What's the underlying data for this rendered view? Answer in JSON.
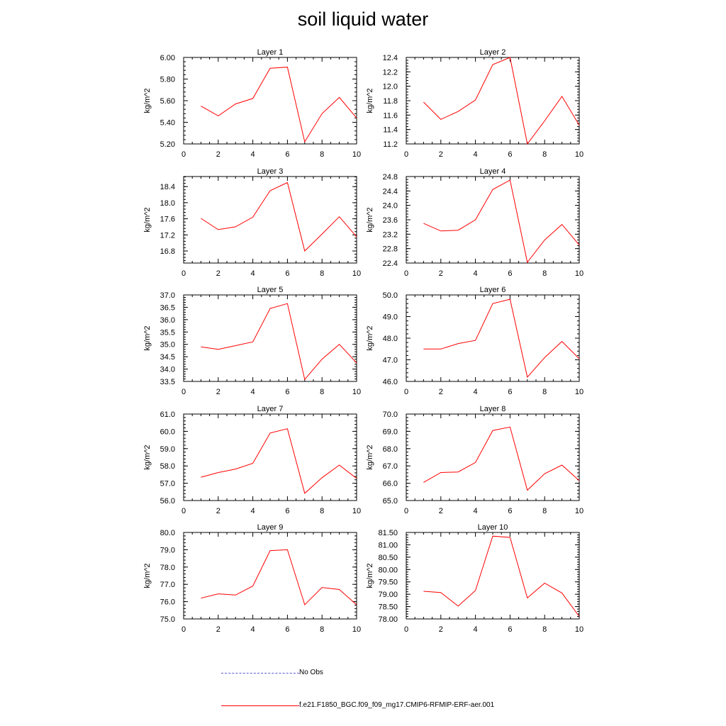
{
  "title": "soil liquid water",
  "legend": [
    {
      "label": "No Obs",
      "color": "#5a5ad2",
      "style": "dashed"
    },
    {
      "label": "f.e21.F1850_BGC.f09_f09_mg17.CMIP6-RFMIP-ERF-aer.001",
      "color": "#ff0000",
      "style": "solid"
    }
  ],
  "chart_data": [
    {
      "type": "line",
      "title": "Layer 1",
      "xlabel": "",
      "ylabel": "kg/m^2",
      "xlim": [
        0,
        10
      ],
      "xticks": [
        "0",
        "2",
        "4",
        "6",
        "8",
        "10"
      ],
      "ylim": [
        5.2,
        6.0
      ],
      "yticks": [
        "5.20",
        "5.40",
        "5.60",
        "5.80",
        "6.00"
      ],
      "series": [
        {
          "color": "#ff0000",
          "x": [
            1,
            2,
            3,
            4,
            5,
            6,
            7,
            8,
            9,
            10
          ],
          "values": [
            5.55,
            5.46,
            5.57,
            5.62,
            5.9,
            5.91,
            5.22,
            5.48,
            5.63,
            5.44
          ]
        }
      ]
    },
    {
      "type": "line",
      "title": "Layer 2",
      "xlabel": "",
      "ylabel": "kg/m^2",
      "xlim": [
        0,
        10
      ],
      "xticks": [
        "0",
        "2",
        "4",
        "6",
        "8",
        "10"
      ],
      "ylim": [
        11.2,
        12.4
      ],
      "yticks": [
        "11.2",
        "11.4",
        "11.6",
        "11.8",
        "12.0",
        "12.2",
        "12.4"
      ],
      "series": [
        {
          "color": "#ff0000",
          "x": [
            1,
            2,
            3,
            4,
            5,
            6,
            7,
            8,
            9,
            10
          ],
          "values": [
            11.78,
            11.54,
            11.65,
            11.81,
            12.3,
            12.4,
            11.2,
            11.52,
            11.86,
            11.46
          ]
        }
      ]
    },
    {
      "type": "line",
      "title": "Layer 3",
      "xlabel": "",
      "ylabel": "kg/m^2",
      "xlim": [
        0,
        10
      ],
      "xticks": [
        "0",
        "2",
        "4",
        "6",
        "8",
        "10"
      ],
      "ylim": [
        16.5,
        18.65
      ],
      "yticks": [
        "16.8",
        "17.2",
        "17.6",
        "18.0",
        "18.4"
      ],
      "series": [
        {
          "color": "#ff0000",
          "x": [
            1,
            2,
            3,
            4,
            5,
            6,
            7,
            8,
            9,
            10
          ],
          "values": [
            17.61,
            17.33,
            17.4,
            17.64,
            18.3,
            18.5,
            16.8,
            17.22,
            17.65,
            17.15
          ]
        }
      ]
    },
    {
      "type": "line",
      "title": "Layer 4",
      "xlabel": "",
      "ylabel": "kg/m^2",
      "xlim": [
        0,
        10
      ],
      "xticks": [
        "0",
        "2",
        "4",
        "6",
        "8",
        "10"
      ],
      "ylim": [
        22.4,
        24.8
      ],
      "yticks": [
        "22.4",
        "22.8",
        "23.2",
        "23.6",
        "24.0",
        "24.4",
        "24.8"
      ],
      "series": [
        {
          "color": "#ff0000",
          "x": [
            1,
            2,
            3,
            4,
            5,
            6,
            7,
            8,
            9,
            10
          ],
          "values": [
            23.5,
            23.29,
            23.31,
            23.6,
            24.44,
            24.7,
            22.42,
            23.04,
            23.47,
            22.9
          ]
        }
      ]
    },
    {
      "type": "line",
      "title": "Layer 5",
      "xlabel": "",
      "ylabel": "kg/m^2",
      "xlim": [
        0,
        10
      ],
      "xticks": [
        "0",
        "2",
        "4",
        "6",
        "8",
        "10"
      ],
      "ylim": [
        33.5,
        37.0
      ],
      "yticks": [
        "33.5",
        "34.0",
        "34.5",
        "35.0",
        "35.5",
        "36.0",
        "36.5",
        "37.0"
      ],
      "series": [
        {
          "color": "#ff0000",
          "x": [
            1,
            2,
            3,
            4,
            5,
            6,
            7,
            8,
            9,
            10
          ],
          "values": [
            34.9,
            34.8,
            34.95,
            35.1,
            36.45,
            36.65,
            33.58,
            34.4,
            35.0,
            34.25
          ]
        }
      ]
    },
    {
      "type": "line",
      "title": "Layer 6",
      "xlabel": "",
      "ylabel": "kg/m^2",
      "xlim": [
        0,
        10
      ],
      "xticks": [
        "0",
        "2",
        "4",
        "6",
        "8",
        "10"
      ],
      "ylim": [
        46.0,
        50.0
      ],
      "yticks": [
        "46.0",
        "47.0",
        "48.0",
        "49.0",
        "50.0"
      ],
      "series": [
        {
          "color": "#ff0000",
          "x": [
            1,
            2,
            3,
            4,
            5,
            6,
            7,
            8,
            9,
            10
          ],
          "values": [
            47.5,
            47.5,
            47.75,
            47.9,
            49.6,
            49.8,
            46.2,
            47.1,
            47.85,
            47.05
          ]
        }
      ]
    },
    {
      "type": "line",
      "title": "Layer 7",
      "xlabel": "",
      "ylabel": "kg/m^2",
      "xlim": [
        0,
        10
      ],
      "xticks": [
        "0",
        "2",
        "4",
        "6",
        "8",
        "10"
      ],
      "ylim": [
        56.0,
        61.0
      ],
      "yticks": [
        "56.0",
        "57.0",
        "58.0",
        "59.0",
        "60.0",
        "61.0"
      ],
      "series": [
        {
          "color": "#ff0000",
          "x": [
            1,
            2,
            3,
            4,
            5,
            6,
            7,
            8,
            9,
            10
          ],
          "values": [
            57.35,
            57.62,
            57.82,
            58.15,
            59.9,
            60.15,
            56.42,
            57.32,
            58.05,
            57.28
          ]
        }
      ]
    },
    {
      "type": "line",
      "title": "Layer 8",
      "xlabel": "",
      "ylabel": "kg/m^2",
      "xlim": [
        0,
        10
      ],
      "xticks": [
        "0",
        "2",
        "4",
        "6",
        "8",
        "10"
      ],
      "ylim": [
        65.0,
        70.0
      ],
      "yticks": [
        "65.0",
        "66.0",
        "67.0",
        "68.0",
        "69.0",
        "70.0"
      ],
      "series": [
        {
          "color": "#ff0000",
          "x": [
            1,
            2,
            3,
            4,
            5,
            6,
            7,
            8,
            9,
            10
          ],
          "values": [
            66.05,
            66.62,
            66.65,
            67.2,
            69.05,
            69.25,
            65.6,
            66.55,
            67.05,
            66.15
          ]
        }
      ]
    },
    {
      "type": "line",
      "title": "Layer 9",
      "xlabel": "",
      "ylabel": "kg/m^2",
      "xlim": [
        0,
        10
      ],
      "xticks": [
        "0",
        "2",
        "4",
        "6",
        "8",
        "10"
      ],
      "ylim": [
        75.0,
        80.0
      ],
      "yticks": [
        "75.0",
        "76.0",
        "77.0",
        "78.0",
        "79.0",
        "80.0"
      ],
      "series": [
        {
          "color": "#ff0000",
          "x": [
            1,
            2,
            3,
            4,
            5,
            6,
            7,
            8,
            9,
            10
          ],
          "values": [
            76.2,
            76.45,
            76.38,
            76.9,
            78.95,
            79.0,
            75.82,
            76.82,
            76.7,
            75.82
          ]
        }
      ]
    },
    {
      "type": "line",
      "title": "Layer 10",
      "xlabel": "",
      "ylabel": "kg/m^2",
      "xlim": [
        0,
        10
      ],
      "xticks": [
        "0",
        "2",
        "4",
        "6",
        "8",
        "10"
      ],
      "ylim": [
        78.0,
        81.5
      ],
      "yticks": [
        "78.00",
        "78.50",
        "79.00",
        "79.50",
        "80.00",
        "80.50",
        "81.00",
        "81.50"
      ],
      "series": [
        {
          "color": "#ff0000",
          "x": [
            1,
            2,
            3,
            4,
            5,
            6,
            7,
            8,
            9,
            10
          ],
          "values": [
            79.12,
            79.07,
            78.52,
            79.15,
            81.35,
            81.3,
            78.85,
            79.45,
            79.05,
            78.1
          ]
        }
      ]
    }
  ]
}
